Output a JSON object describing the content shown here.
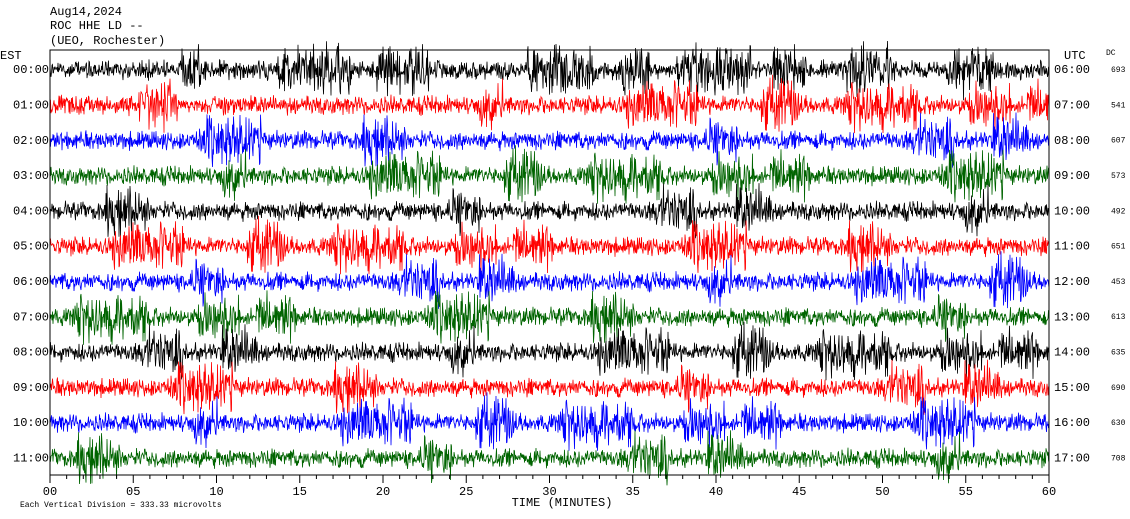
{
  "header": {
    "date": "Aug14,2024",
    "station": "ROC HHE LD --",
    "location": "(UEO, Rochester)"
  },
  "left_axis": {
    "title": "EST",
    "labels": [
      "00:00",
      "01:00",
      "02:00",
      "03:00",
      "04:00",
      "05:00",
      "06:00",
      "07:00",
      "08:00",
      "09:00",
      "10:00",
      "11:00"
    ]
  },
  "right_axis": {
    "title": "UTC",
    "labels": [
      "06:00",
      "07:00",
      "08:00",
      "09:00",
      "10:00",
      "11:00",
      "12:00",
      "13:00",
      "14:00",
      "15:00",
      "16:00",
      "17:00"
    ]
  },
  "dc": {
    "title": "DC",
    "values": [
      693,
      541,
      607,
      573,
      492,
      651,
      453,
      613,
      635,
      690,
      630,
      708
    ]
  },
  "x_axis": {
    "title": "TIME (MINUTES)",
    "ticks": [
      "00",
      "05",
      "10",
      "15",
      "20",
      "25",
      "30",
      "35",
      "40",
      "45",
      "50",
      "55",
      "60"
    ]
  },
  "footer": "Each Vertical Division =  333.33 microvolts",
  "trace_colors": [
    "#000000",
    "#ff0000",
    "#0000ff",
    "#006400"
  ]
}
